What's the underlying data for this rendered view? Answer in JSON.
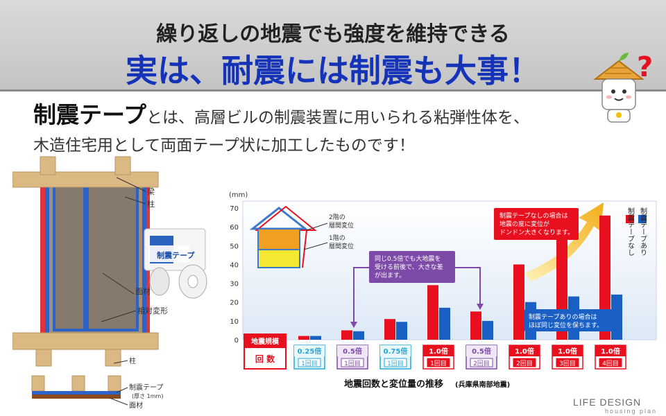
{
  "header": {
    "subtitle": "繰り返しの地震でも強度を維持できる",
    "title": "実は、耐震には制震も大事！"
  },
  "intro": {
    "lead": "制震テープ",
    "line1": "とは、高層ビルの制震装置に用いられる粘弾性体を、",
    "line2": "木造住宅用として両面テープ状に加工したものです！"
  },
  "mascot": {
    "icon": "house-mascot-icon",
    "question_mark": "?"
  },
  "frame_diagram": {
    "labels": {
      "beam": "梁",
      "column": "柱",
      "panel": "面材",
      "relative": "相対変形",
      "column2": "柱",
      "tape": "制震テープ",
      "tape_thickness": "(厚さ 1mm)",
      "panel2": "面材"
    },
    "tape_label": "制震テープ"
  },
  "chart_data": {
    "type": "bar",
    "title": "地震回数と変位量の推移",
    "title_note": "(兵庫県南部地震)",
    "ylabel": "(mm)",
    "ylim": [
      0,
      70
    ],
    "yticks": [
      0,
      10,
      20,
      30,
      40,
      50,
      60,
      70
    ],
    "grid": false,
    "legend_position": "right",
    "row_header": {
      "label1": "地震規模",
      "label2": "回 数"
    },
    "categories": [
      {
        "scale": "0.25倍",
        "count": "1回目",
        "tone": "cyan"
      },
      {
        "scale": "0.5倍",
        "count": "1回目",
        "tone": "purple"
      },
      {
        "scale": "0.75倍",
        "count": "1回目",
        "tone": "cyan"
      },
      {
        "scale": "1.0倍",
        "count": "1回目",
        "tone": "red"
      },
      {
        "scale": "0.5倍",
        "count": "2回目",
        "tone": "purple"
      },
      {
        "scale": "1.0倍",
        "count": "2回目",
        "tone": "red"
      },
      {
        "scale": "1.0倍",
        "count": "3回目",
        "tone": "red"
      },
      {
        "scale": "1.0倍",
        "count": "4回目",
        "tone": "red"
      }
    ],
    "series": [
      {
        "name": "制震テープなし",
        "color": "#e8101e",
        "values": [
          2,
          5,
          11,
          29,
          15,
          40,
          55,
          66
        ]
      },
      {
        "name": "制震テープあり",
        "color": "#1a5fc4",
        "values": [
          2,
          4.5,
          9.5,
          17,
          10,
          20,
          23,
          24
        ]
      }
    ],
    "house_labels": {
      "floor2": "2階の\n層間変位",
      "floor1": "1階の\n層間変位"
    },
    "annotations": {
      "purple": "同じ0.5倍でも大地震を\n受ける前後で、大きな差\nが出ます。",
      "red": "制震テープなしの場合は\n地震の度に変位が\nドンドン大きくなります。",
      "blue": "制震テープありの場合は\nほぼ同じ変位を保ちます。"
    }
  },
  "logo": {
    "name": "LIFE DESIGN",
    "sub": "housing plan",
    "icon": "ld-logo-icon"
  }
}
